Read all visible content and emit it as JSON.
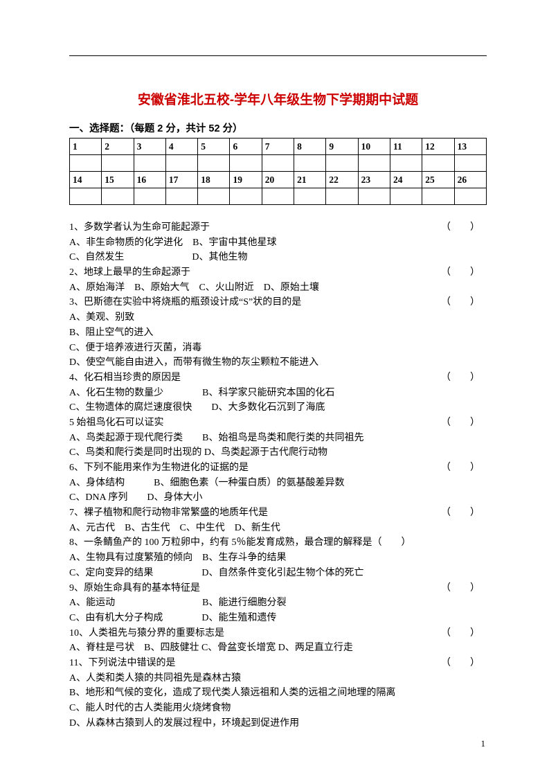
{
  "title_text": "安徽省淮北五校-学年八年级生物下学期期中试题",
  "title_color": "#cc0000",
  "section_heading": "一、选择题：（每题 2 分，共计 52 分）",
  "grid_row1": [
    "1",
    "2",
    "3",
    "4",
    "5",
    "6",
    "7",
    "8",
    "9",
    "10",
    "11",
    "12",
    "13"
  ],
  "grid_row2": [
    "14",
    "15",
    "16",
    "17",
    "18",
    "19",
    "20",
    "21",
    "22",
    "23",
    "24",
    "25",
    "26"
  ],
  "paren_text": "（　　）",
  "q1": "1、多数学者认为生命可能起源于",
  "q1a": "A、非生命物质的化学进化　B、宇宙中其他星球",
  "q1b": "C、自然发生　　　　　　　D、其他生物",
  "q2": "2、地球上最早的生命起源于",
  "q2a": "A、原始海洋　B、原始大气　C、火山附近　D、原始土壤",
  "q3": "3、巴斯德在实验中将烧瓶的瓶颈设计成“S”状的目的是",
  "q3a": "A、美观、别致",
  "q3b": "B、阻止空气的进入",
  "q3c": "C、便于培养液进行灭菌，消毒",
  "q3d": "D、使空气能自由进入，而带有微生物的灰尘颗粒不能进入",
  "q4": "4、化石相当珍贵的原因是",
  "q4a": "A、化石生物的数量少　　　　B、科学家只能研究本国的化石",
  "q4b": "C、生物遗体的腐烂速度很快　　D、大多数化石沉到了海底",
  "q5": "5 始祖鸟化石可以证实",
  "q5a": "A、鸟类起源于现代爬行类　　B、始祖鸟是鸟类和爬行类的共同祖先",
  "q5b": "C、鸟类和爬行类是同时出现的 D、鸟类起源于古代爬行动物",
  "q6": "6、下列不能用来作为生物进化的证据的是",
  "q6a": "A、身体结构　　　B、细胞色素（一种蛋白质）的氨基酸差异数",
  "q6b": "C、DNA 序列　　D、身体大小",
  "q7": "7、裸子植物和爬行动物非常繁盛的地质年代是",
  "q7a": "A、元古代　B、古生代　C、中生代　D、新生代",
  "q8": "8、一条鲭鱼产的 100 万粒卵中，约有 5％能发育成熟，最合理的解释是（　　）",
  "q8a": "A、生物具有过度繁殖的倾向　B、生存斗争的结果",
  "q8b": "C、定向变异的结果　　　　　D、自然条件变化引起生物个体的死亡",
  "q9": "9、原始生命具有的基本特征是",
  "q9a": "A、能运动　　　　　　　　　B、能进行细胞分裂",
  "q9b": "C、由有机大分子构成　　　　D、能生殖和遗传",
  "q10": "10、人类祖先与猿分界的重要标志是",
  "q10a": "A、脊柱是弓状　B、四肢健壮 C、骨盆变长增宽 D、两足直立行走",
  "q11": "11、下列说法中错误的是",
  "q11a": "A、人类和类人猿的共同祖先是森林古猿",
  "q11b": "B、地形和气候的变化，造成了现代类人猿远祖和人类的远祖之间地理的隔离",
  "q11c": "C、能人时代的古人类能用火烧烤食物",
  "q11d": "D、从森林古猿到人的发展过程中，环境起到促进作用",
  "page_number": "1"
}
